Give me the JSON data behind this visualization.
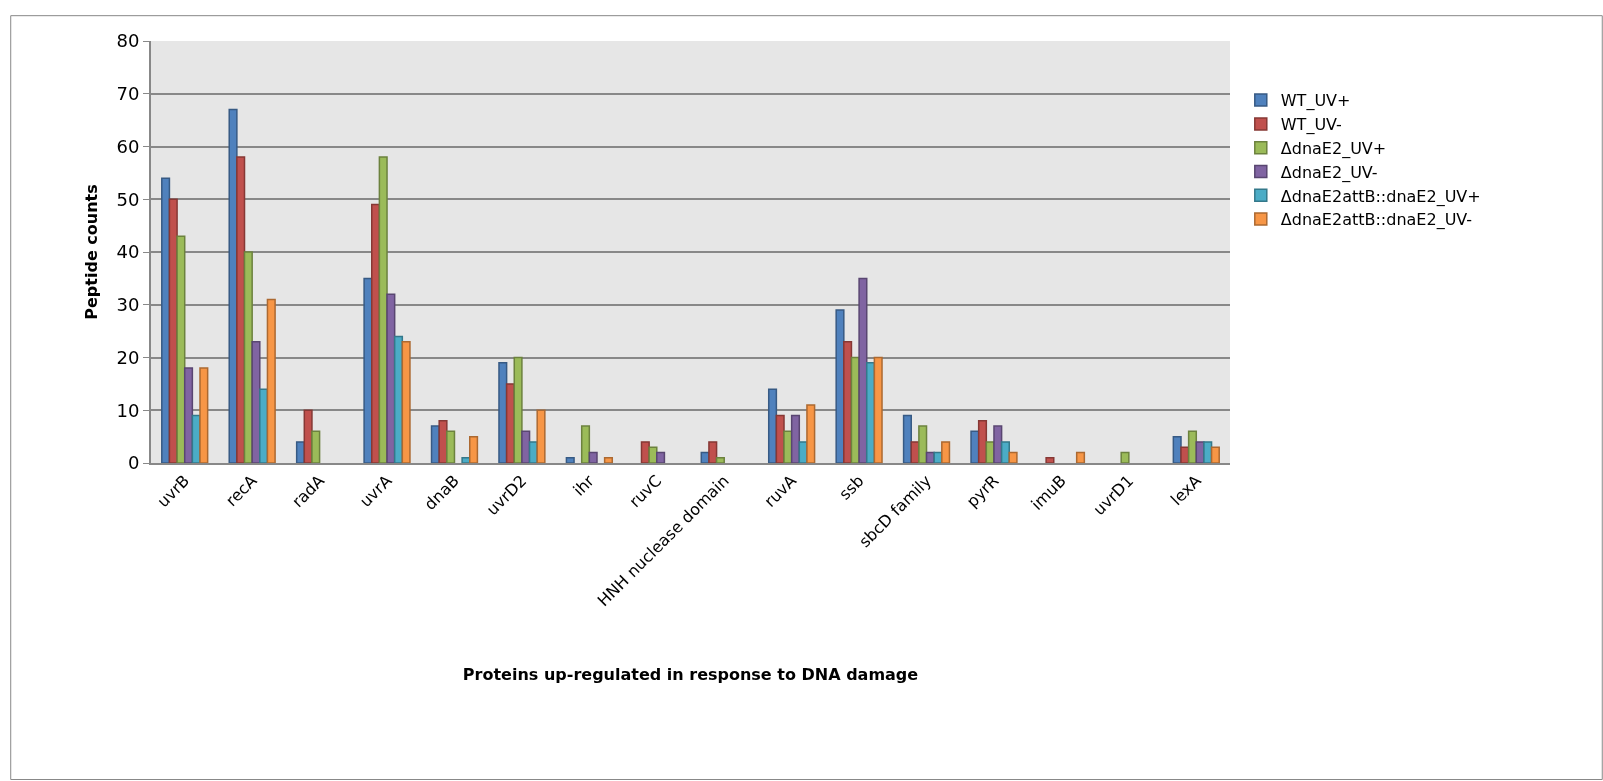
{
  "chart_data": {
    "type": "bar",
    "xlabel": "Proteins up-regulated in response to DNA damage",
    "ylabel": "Peptide counts",
    "categories": [
      "uvrB",
      "recA",
      "radA",
      "uvrA",
      "dnaB",
      "uvrD2",
      "ihr",
      "ruvC",
      "HNH nuclease domain",
      "ruvA",
      "ssb",
      "sbcD family",
      "pyrR",
      "imuB",
      "uvrD1",
      "lexA"
    ],
    "series": [
      {
        "name": "WT_UV+",
        "color": "#4f81bd",
        "values": [
          54,
          67,
          4,
          35,
          7,
          19,
          1,
          0,
          2,
          14,
          29,
          9,
          6,
          0,
          0,
          5
        ]
      },
      {
        "name": "WT_UV-",
        "color": "#c0504d",
        "values": [
          50,
          58,
          10,
          49,
          8,
          15,
          0,
          4,
          4,
          9,
          23,
          4,
          8,
          1,
          0,
          3
        ]
      },
      {
        "name": "ΔdnaE2_UV+",
        "color": "#9bbb59",
        "values": [
          43,
          40,
          6,
          58,
          6,
          20,
          7,
          3,
          1,
          6,
          20,
          7,
          4,
          0,
          2,
          6
        ]
      },
      {
        "name": "ΔdnaE2_UV-",
        "color": "#8064a2",
        "values": [
          18,
          23,
          0,
          32,
          0,
          6,
          2,
          2,
          0,
          9,
          35,
          2,
          7,
          0,
          0,
          4
        ]
      },
      {
        "name": "ΔdnaE2attB::dnaE2_UV+",
        "color": "#4bacc6",
        "values": [
          9,
          14,
          0,
          24,
          1,
          4,
          0,
          0,
          0,
          4,
          19,
          2,
          4,
          0,
          0,
          4
        ]
      },
      {
        "name": "ΔdnaE2attB::dnaE2_UV-",
        "color": "#f79646",
        "values": [
          18,
          31,
          0,
          23,
          5,
          10,
          1,
          0,
          0,
          11,
          20,
          4,
          2,
          2,
          0,
          3
        ]
      }
    ],
    "ylim": [
      0,
      80
    ],
    "yticks": [
      0,
      10,
      20,
      30,
      40,
      50,
      60,
      70,
      80
    ],
    "grid": "y",
    "legend": "right"
  }
}
